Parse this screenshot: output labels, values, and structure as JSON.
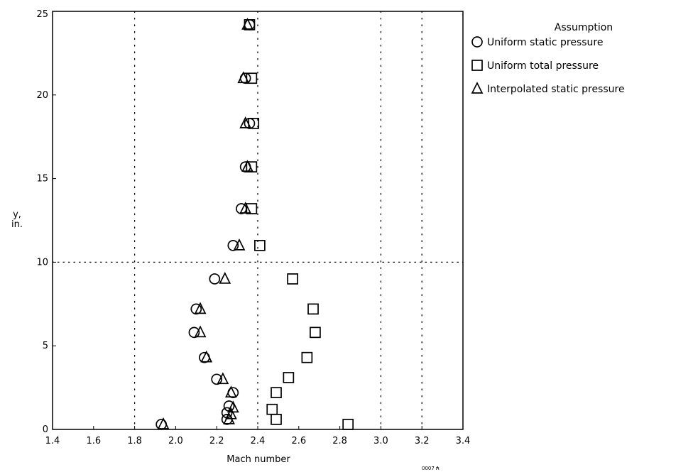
{
  "chart_data": {
    "type": "scatter",
    "title": "",
    "xlabel": "Mach number",
    "ylabel_lines": [
      "y,",
      "in."
    ],
    "xlim": [
      1.4,
      3.4
    ],
    "ylim": [
      0,
      25
    ],
    "xticks": [
      "1.4",
      "1.6",
      "1.8",
      "2.0",
      "2.2",
      "2.4",
      "2.6",
      "2.8",
      "3.0",
      "3.2",
      "3.4"
    ],
    "yticks": [
      "0",
      "5",
      "10",
      "15",
      "20",
      "25"
    ],
    "grid": {
      "vertical_dotted_x": [
        1.8,
        2.4,
        3.0,
        3.2
      ],
      "horizontal_dotted_y": [
        10
      ]
    },
    "legend": {
      "title": "Assumption",
      "placement": "outside-right-top",
      "entries": [
        {
          "label": "Uniform static pressure",
          "marker": "circle"
        },
        {
          "label": "Uniform total pressure",
          "marker": "square"
        },
        {
          "label": "Interpolated static pressure",
          "marker": "triangle"
        }
      ]
    },
    "series": [
      {
        "name": "Uniform static pressure",
        "marker": "circle",
        "x": [
          1.93,
          2.25,
          2.25,
          2.26,
          2.28,
          2.2,
          2.14,
          2.09,
          2.1,
          2.19,
          2.28,
          2.32,
          2.34,
          2.36,
          2.34,
          2.36
        ],
        "y": [
          0.3,
          0.6,
          1.0,
          1.4,
          2.2,
          3.0,
          4.3,
          5.8,
          7.2,
          9.0,
          11.0,
          13.2,
          15.7,
          18.3,
          21.0,
          24.2
        ]
      },
      {
        "name": "Uniform total pressure",
        "marker": "square",
        "x": [
          2.84,
          2.49,
          2.47,
          2.49,
          2.55,
          2.64,
          2.68,
          2.67,
          2.57,
          2.41,
          2.37,
          2.37,
          2.38,
          2.37,
          2.36
        ],
        "y": [
          0.3,
          0.6,
          1.2,
          2.2,
          3.1,
          4.3,
          5.8,
          7.2,
          9.0,
          11.0,
          13.2,
          15.7,
          18.3,
          21.0,
          24.2
        ]
      },
      {
        "name": "Interpolated static pressure",
        "marker": "triangle",
        "x": [
          1.94,
          2.26,
          2.27,
          2.28,
          2.27,
          2.23,
          2.15,
          2.12,
          2.12,
          2.24,
          2.31,
          2.34,
          2.35,
          2.34,
          2.33,
          2.35
        ],
        "y": [
          0.3,
          0.6,
          0.9,
          1.3,
          2.2,
          3.0,
          4.3,
          5.8,
          7.2,
          9.0,
          11.0,
          13.2,
          15.7,
          18.3,
          21.0,
          24.2
        ]
      }
    ]
  },
  "footnote": "0007 ₳"
}
